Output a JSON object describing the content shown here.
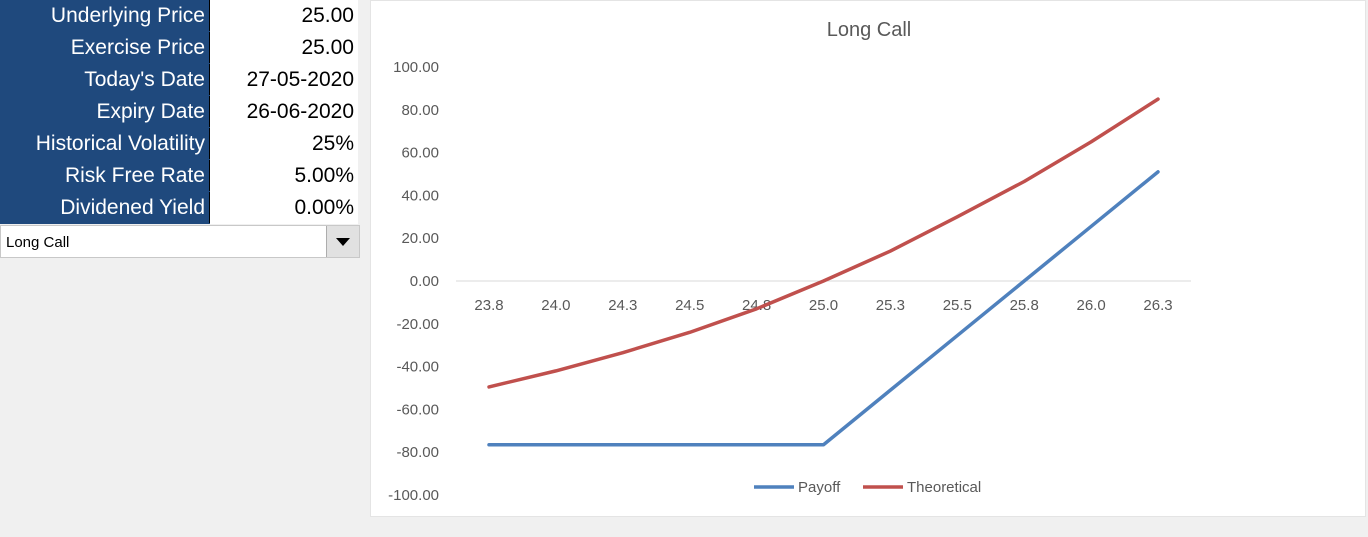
{
  "params": {
    "rows": [
      {
        "label": "Underlying Price",
        "value": "25.00"
      },
      {
        "label": "Exercise Price",
        "value": "25.00"
      },
      {
        "label": "Today's Date",
        "value": "27-05-2020"
      },
      {
        "label": "Expiry Date",
        "value": "26-06-2020"
      },
      {
        "label": "Historical Volatility",
        "value": "25%"
      },
      {
        "label": "Risk Free Rate",
        "value": "5.00%"
      },
      {
        "label": "Dividened Yield",
        "value": "0.00%"
      }
    ]
  },
  "strategy_select": {
    "selected": "Long Call"
  },
  "colors": {
    "header_bg": "#1f497d",
    "payoff": "#4f81bd",
    "theoretical": "#c0504d"
  },
  "chart_data": {
    "type": "line",
    "title": "Long Call",
    "categories": [
      "23.8",
      "24.0",
      "24.3",
      "24.5",
      "24.8",
      "25.0",
      "25.3",
      "25.5",
      "25.8",
      "26.0",
      "26.3"
    ],
    "ylim": [
      -100,
      100
    ],
    "yticks": [
      "100.00",
      "80.00",
      "60.00",
      "40.00",
      "20.00",
      "0.00",
      "-20.00",
      "-40.00",
      "-60.00",
      "-80.00",
      "-100.00"
    ],
    "series": [
      {
        "name": "Payoff",
        "values": [
          -76.5,
          -76.5,
          -76.5,
          -76.5,
          -76.5,
          -76.5,
          -51,
          -25.5,
          0,
          25.5,
          51
        ]
      },
      {
        "name": "Theoretical",
        "values": [
          -49.5,
          -42,
          -33.5,
          -24,
          -13,
          0,
          14,
          30,
          46.5,
          65,
          85
        ]
      }
    ],
    "grid": false,
    "legend": "bottom"
  }
}
